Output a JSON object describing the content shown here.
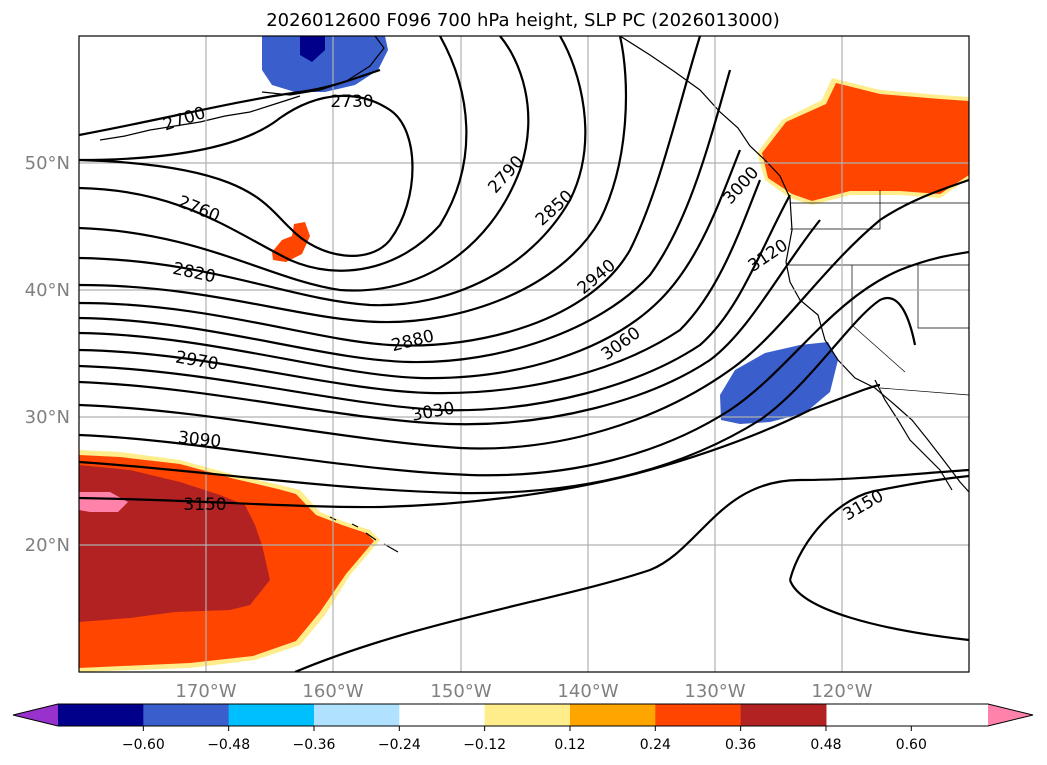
{
  "title": "2026012600 F096 700 hPa height, SLP PC (2026013000)",
  "latitude_labels": [
    "50°N",
    "40°N",
    "30°N",
    "20°N"
  ],
  "longitude_labels": [
    "170°W",
    "160°W",
    "150°W",
    "140°W",
    "130°W",
    "120°W"
  ],
  "contour_labels": [
    "2700",
    "2730",
    "2760",
    "2790",
    "2820",
    "2850",
    "2880",
    "2940",
    "2970",
    "3000",
    "3030",
    "3060",
    "3090",
    "3120",
    "3150",
    "3150"
  ],
  "colorbar": {
    "tick_labels": [
      "−0.60",
      "−0.48",
      "−0.36",
      "−0.24",
      "−0.12",
      "0.12",
      "0.24",
      "0.36",
      "0.48",
      "0.60"
    ],
    "colors": [
      "#9932cc",
      "#00008b",
      "#3a5fcd",
      "#00bfff",
      "#b0e2ff",
      "#ffffff",
      "#ffec8b",
      "#ffa500",
      "#ff4500",
      "#b22222",
      "#ff82ab"
    ]
  },
  "shading": {
    "strong_negative": "#3a5fcd",
    "extreme_negative": "#00008b",
    "positive": "#ff4500",
    "strong_positive": "#b22222",
    "extreme_positive": "#ff82ab",
    "weak_positive": "#ffec8b"
  }
}
